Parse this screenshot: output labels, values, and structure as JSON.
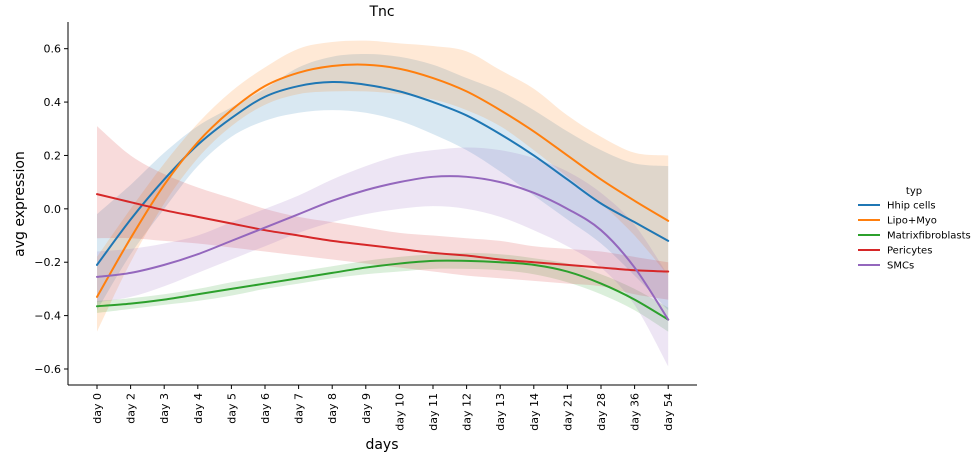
{
  "chart_data": {
    "type": "line",
    "title": "Tnc",
    "xlabel": "days",
    "ylabel": "avg expression",
    "categories": [
      "day 0",
      "day 2",
      "day 3",
      "day 4",
      "day 5",
      "day 6",
      "day 7",
      "day 8",
      "day 9",
      "day 10",
      "day 11",
      "day 12",
      "day 13",
      "day 14",
      "day 21",
      "day 28",
      "day 36",
      "day 54"
    ],
    "ylim": [
      -0.66,
      0.7
    ],
    "yticks": [
      -0.6,
      -0.4,
      -0.2,
      0.0,
      0.2,
      0.4,
      0.6
    ],
    "ytick_labels": [
      "−0.6",
      "−0.4",
      "−0.2",
      "0.0",
      "0.2",
      "0.4",
      "0.6"
    ],
    "grid": false,
    "legend": {
      "title": "typ",
      "placement": "right"
    },
    "series": [
      {
        "name": "Hhip cells",
        "color": "#1f77b4",
        "values": [
          -0.21,
          -0.04,
          0.11,
          0.24,
          0.34,
          0.42,
          0.46,
          0.475,
          0.465,
          0.44,
          0.4,
          0.35,
          0.28,
          0.2,
          0.11,
          0.02,
          -0.05,
          -0.12
        ],
        "lower": [
          -0.38,
          -0.17,
          0.0,
          0.16,
          0.27,
          0.33,
          0.36,
          0.37,
          0.36,
          0.33,
          0.28,
          0.22,
          0.14,
          0.05,
          -0.04,
          -0.13,
          -0.25,
          -0.38
        ],
        "upper": [
          -0.02,
          0.09,
          0.21,
          0.31,
          0.38,
          0.45,
          0.53,
          0.57,
          0.58,
          0.57,
          0.54,
          0.49,
          0.44,
          0.37,
          0.29,
          0.22,
          0.17,
          0.16
        ]
      },
      {
        "name": "Lipo+Myo",
        "color": "#ff7f0e",
        "values": [
          -0.33,
          -0.11,
          0.09,
          0.25,
          0.37,
          0.46,
          0.51,
          0.535,
          0.54,
          0.525,
          0.49,
          0.44,
          0.37,
          0.29,
          0.2,
          0.11,
          0.03,
          -0.045
        ],
        "lower": [
          -0.46,
          -0.2,
          0.02,
          0.19,
          0.31,
          0.39,
          0.43,
          0.44,
          0.44,
          0.43,
          0.41,
          0.37,
          0.31,
          0.22,
          0.12,
          0.02,
          -0.1,
          -0.25
        ],
        "upper": [
          -0.18,
          0.0,
          0.17,
          0.32,
          0.44,
          0.53,
          0.6,
          0.625,
          0.63,
          0.62,
          0.61,
          0.59,
          0.52,
          0.45,
          0.35,
          0.27,
          0.21,
          0.2
        ]
      },
      {
        "name": "Matrixfibroblasts",
        "color": "#2ca02c",
        "values": [
          -0.365,
          -0.355,
          -0.34,
          -0.32,
          -0.3,
          -0.28,
          -0.26,
          -0.24,
          -0.22,
          -0.205,
          -0.195,
          -0.195,
          -0.2,
          -0.21,
          -0.235,
          -0.28,
          -0.34,
          -0.415
        ],
        "lower": [
          -0.39,
          -0.375,
          -0.36,
          -0.345,
          -0.325,
          -0.3,
          -0.28,
          -0.26,
          -0.245,
          -0.235,
          -0.225,
          -0.225,
          -0.23,
          -0.245,
          -0.275,
          -0.32,
          -0.38,
          -0.46
        ],
        "upper": [
          -0.345,
          -0.335,
          -0.32,
          -0.3,
          -0.275,
          -0.255,
          -0.235,
          -0.215,
          -0.195,
          -0.18,
          -0.17,
          -0.165,
          -0.17,
          -0.185,
          -0.205,
          -0.245,
          -0.3,
          -0.37
        ]
      },
      {
        "name": "Pericytes",
        "color": "#d62728",
        "values": [
          0.055,
          0.025,
          -0.005,
          -0.03,
          -0.055,
          -0.08,
          -0.1,
          -0.12,
          -0.135,
          -0.15,
          -0.165,
          -0.175,
          -0.19,
          -0.2,
          -0.21,
          -0.22,
          -0.23,
          -0.235
        ],
        "lower": [
          -0.11,
          -0.11,
          -0.12,
          -0.13,
          -0.145,
          -0.16,
          -0.175,
          -0.19,
          -0.205,
          -0.22,
          -0.235,
          -0.25,
          -0.26,
          -0.27,
          -0.28,
          -0.29,
          -0.32,
          -0.34
        ],
        "upper": [
          0.31,
          0.2,
          0.13,
          0.08,
          0.04,
          0.0,
          -0.03,
          -0.05,
          -0.07,
          -0.09,
          -0.1,
          -0.11,
          -0.12,
          -0.14,
          -0.15,
          -0.16,
          -0.18,
          -0.2
        ]
      },
      {
        "name": "SMCs",
        "color": "#9467bd",
        "values": [
          -0.255,
          -0.24,
          -0.21,
          -0.17,
          -0.12,
          -0.07,
          -0.02,
          0.03,
          0.07,
          0.1,
          0.12,
          0.12,
          0.1,
          0.06,
          0.0,
          -0.08,
          -0.22,
          -0.415
        ],
        "lower": [
          -0.35,
          -0.33,
          -0.29,
          -0.24,
          -0.19,
          -0.14,
          -0.09,
          -0.05,
          -0.02,
          0.0,
          0.01,
          0.0,
          -0.03,
          -0.08,
          -0.14,
          -0.22,
          -0.36,
          -0.59
        ],
        "upper": [
          -0.16,
          -0.15,
          -0.13,
          -0.1,
          -0.05,
          0.0,
          0.05,
          0.11,
          0.16,
          0.2,
          0.22,
          0.23,
          0.22,
          0.19,
          0.14,
          0.06,
          -0.06,
          -0.25
        ]
      }
    ]
  }
}
